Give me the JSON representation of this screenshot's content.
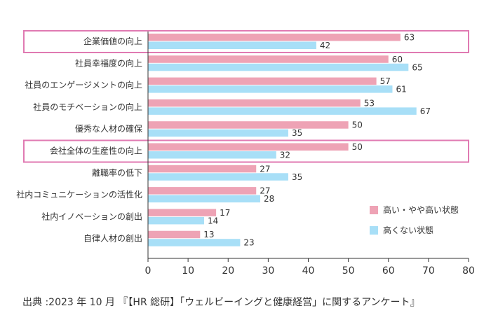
{
  "chart_data": {
    "type": "bar",
    "orientation": "horizontal",
    "categories": [
      "企業価値の向上",
      "社員幸福度の向上",
      "社員のエンゲージメントの向上",
      "社員のモチベーションの向上",
      "優秀な人材の確保",
      "会社全体の生産性の向上",
      "離職率の低下",
      "社内コミュニケーションの活性化",
      "社内イノベーションの創出",
      "自律人材の創出"
    ],
    "series": [
      {
        "name": "高い・やや高い状態",
        "values": [
          63,
          60,
          57,
          53,
          50,
          50,
          27,
          27,
          17,
          13
        ],
        "color": "#eea3b5"
      },
      {
        "name": "高くない状態",
        "values": [
          42,
          65,
          61,
          67,
          35,
          32,
          35,
          28,
          14,
          23
        ],
        "color": "#a8dff7"
      }
    ],
    "xlim": [
      0,
      80
    ],
    "xticks": [
      0,
      10,
      20,
      30,
      40,
      50,
      60,
      70,
      80
    ],
    "highlighted_categories": [
      "企業価値の向上",
      "会社全体の生産性の向上"
    ],
    "highlight_color": "#e07ab2",
    "legend_position": "right",
    "grid": false
  },
  "legend": [
    {
      "label": "高い・やや高い状態",
      "color": "#eea3b5"
    },
    {
      "label": "高くない状態",
      "color": "#a8dff7"
    }
  ],
  "source": "出典 :2023 年 10 月 『【HR 総研】「ウェルビーイングと健康経営」に関するアンケート』"
}
